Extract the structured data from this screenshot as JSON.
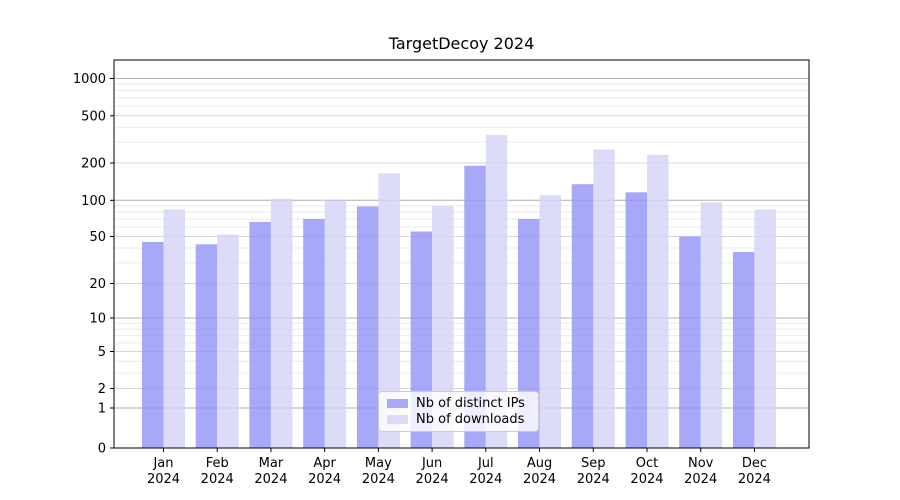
{
  "title": "TargetDecoy 2024",
  "chart_data": {
    "type": "bar",
    "title": "TargetDecoy 2024",
    "xlabel": "",
    "ylabel": "",
    "yscale": "log1p",
    "grid": "horizontal",
    "legend_position": "lower center",
    "categories": [
      {
        "month": "Jan",
        "year": "2024"
      },
      {
        "month": "Feb",
        "year": "2024"
      },
      {
        "month": "Mar",
        "year": "2024"
      },
      {
        "month": "Apr",
        "year": "2024"
      },
      {
        "month": "May",
        "year": "2024"
      },
      {
        "month": "Jun",
        "year": "2024"
      },
      {
        "month": "Jul",
        "year": "2024"
      },
      {
        "month": "Aug",
        "year": "2024"
      },
      {
        "month": "Sep",
        "year": "2024"
      },
      {
        "month": "Oct",
        "year": "2024"
      },
      {
        "month": "Nov",
        "year": "2024"
      },
      {
        "month": "Dec",
        "year": "2024"
      }
    ],
    "series": [
      {
        "name": "Nb of distinct IPs",
        "color": "#9292f7",
        "values": [
          45,
          43,
          66,
          70,
          89,
          55,
          190,
          70,
          135,
          116,
          50,
          37
        ]
      },
      {
        "name": "Nb of downloads",
        "color": "#d3d3f8",
        "values": [
          84,
          52,
          103,
          100,
          165,
          90,
          345,
          110,
          260,
          234,
          96,
          84
        ]
      }
    ],
    "yticks": [
      0,
      1,
      2,
      5,
      10,
      20,
      50,
      100,
      200,
      500,
      1000
    ],
    "ylim": [
      0,
      1400
    ],
    "colors": {
      "bar_dark": "#a9a9f8",
      "bar_light": "#dbdbf9",
      "grid_decade": "#b2b2b2",
      "grid_labeled": "#d8d8d8",
      "grid_minor": "#ebebeb",
      "axis": "#000000"
    }
  }
}
